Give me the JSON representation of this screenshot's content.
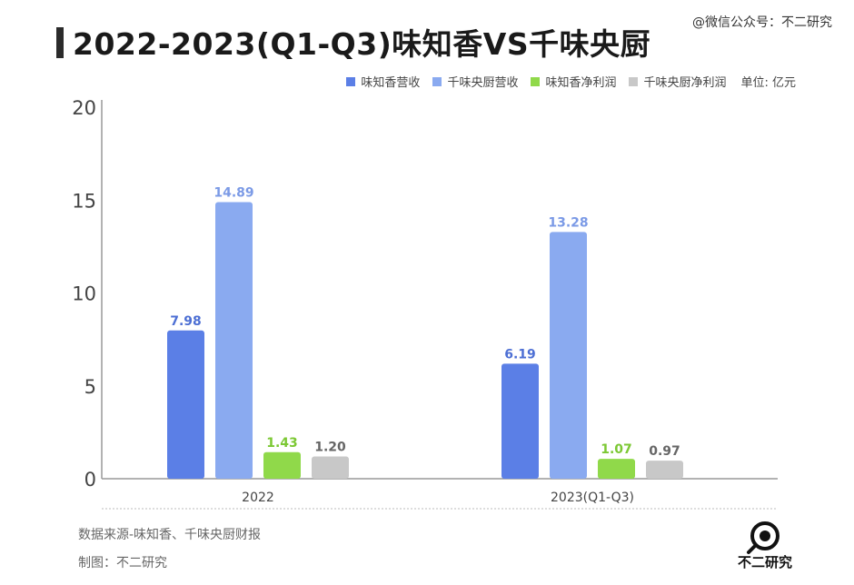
{
  "title": "2022-2023(Q1-Q3)味知香VS千味央厨",
  "watermark": "@微信公众号：不二研究",
  "unit_label": "单位: 亿元",
  "footer": {
    "source": "数据来源-味知香、千味央厨财报",
    "maker": "制图：不二研究"
  },
  "logo_text": "不二研究",
  "colors": {
    "wzx_revenue": "#5b7fe6",
    "qwyc_revenue": "#8aaaf0",
    "wzx_profit": "#90d94a",
    "qwyc_profit": "#c8c8c8",
    "label_wzx_revenue": "#4d6fd4",
    "label_qwyc_revenue": "#7b9ae6",
    "label_wzx_profit": "#7cc834",
    "label_qwyc_profit": "#666666"
  },
  "chart_data": {
    "type": "bar",
    "title": "2022-2023(Q1-Q3)味知香VS千味央厨",
    "categories": [
      "2022",
      "2023(Q1-Q3)"
    ],
    "series": [
      {
        "name": "味知香营收",
        "values": [
          7.98,
          6.19
        ]
      },
      {
        "name": "千味央厨营收",
        "values": [
          14.89,
          13.28
        ]
      },
      {
        "name": "味知香净利润",
        "values": [
          1.43,
          1.07
        ]
      },
      {
        "name": "千味央厨净利润",
        "values": [
          1.2,
          0.97
        ]
      }
    ],
    "data_labels": [
      [
        "7.98",
        "14.89",
        "1.43",
        "1.20"
      ],
      [
        "6.19",
        "13.28",
        "1.07",
        "0.97"
      ]
    ],
    "ylim": [
      0,
      20
    ],
    "yticks": [
      0,
      5,
      10,
      15,
      20
    ],
    "grid": false,
    "legend_position": "top-right"
  }
}
